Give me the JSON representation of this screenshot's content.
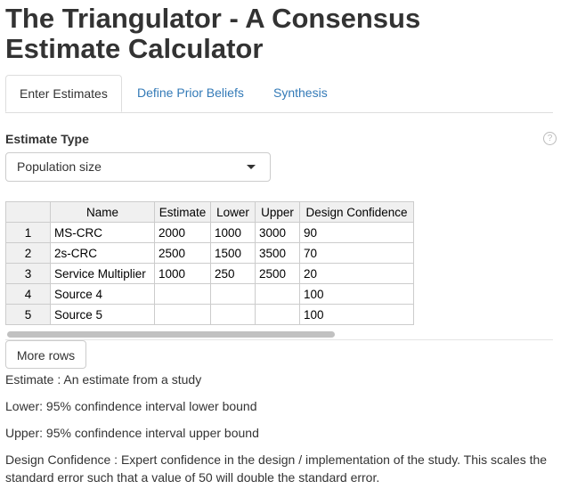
{
  "app": {
    "title": "The Triangulator - A Consensus Estimate Calculator"
  },
  "tabs": [
    {
      "label": "Enter Estimates",
      "active": true
    },
    {
      "label": "Define Prior Beliefs",
      "active": false
    },
    {
      "label": "Synthesis",
      "active": false
    }
  ],
  "estimate_type": {
    "label": "Estimate Type",
    "help_icon": "question-circle-icon",
    "selected": "Population size"
  },
  "table": {
    "columns": [
      "",
      "Name",
      "Estimate",
      "Lower",
      "Upper",
      "Design Confidence"
    ],
    "rows": [
      [
        "1",
        "MS-CRC",
        "2000",
        "1000",
        "3000",
        "90"
      ],
      [
        "2",
        "2s-CRC",
        "2500",
        "1500",
        "3500",
        "70"
      ],
      [
        "3",
        "Service Multiplier",
        "1000",
        "250",
        "2500",
        "20"
      ],
      [
        "4",
        "Source 4",
        "",
        "",
        "",
        "100"
      ],
      [
        "5",
        "Source 5",
        "",
        "",
        "",
        "100"
      ]
    ]
  },
  "more_rows_label": "More rows",
  "descriptions": [
    "Estimate : An estimate from a study",
    "Lower: 95% confindence interval lower bound",
    "Upper: 95% confindence interval upper bound",
    "Design Confidence : Expert confidence in the design / implementation of the study. This scales the standard error such that a value of 50 will double the standard error."
  ],
  "colors": {
    "link": "#337ab7",
    "text": "#333333"
  }
}
